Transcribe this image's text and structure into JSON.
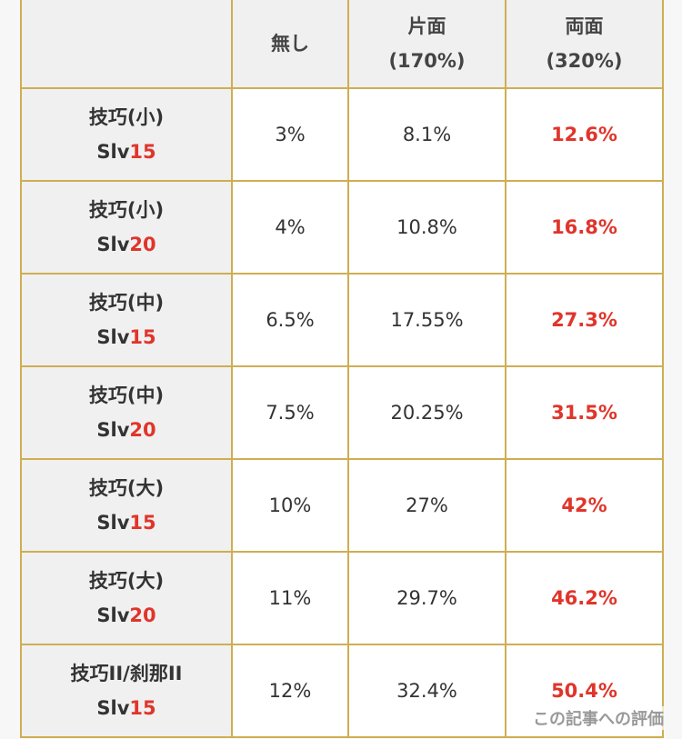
{
  "table": {
    "header": [
      [],
      [
        "無し"
      ],
      [
        "片面",
        "(170%)"
      ],
      [
        "両面",
        "(320%)"
      ]
    ],
    "rows": [
      {
        "name": "技巧(小)",
        "slv": "Slv",
        "level": "15",
        "cells": [
          "3%",
          "8.1%",
          "12.6%"
        ]
      },
      {
        "name": "技巧(小)",
        "slv": "Slv",
        "level": "20",
        "cells": [
          "4%",
          "10.8%",
          "16.8%"
        ]
      },
      {
        "name": "技巧(中)",
        "slv": "Slv",
        "level": "15",
        "cells": [
          "6.5%",
          "17.55%",
          "27.3%"
        ]
      },
      {
        "name": "技巧(中)",
        "slv": "Slv",
        "level": "20",
        "cells": [
          "7.5%",
          "20.25%",
          "31.5%"
        ]
      },
      {
        "name": "技巧(大)",
        "slv": "Slv",
        "level": "15",
        "cells": [
          "10%",
          "27%",
          "42%"
        ]
      },
      {
        "name": "技巧(大)",
        "slv": "Slv",
        "level": "20",
        "cells": [
          "11%",
          "29.7%",
          "46.2%"
        ]
      },
      {
        "name": "技巧II/刹那II",
        "slv": "Slv",
        "level": "15",
        "cells": [
          "12%",
          "32.4%",
          "50.4%"
        ]
      }
    ]
  },
  "overlay": {
    "rating": "この記事への評価"
  }
}
